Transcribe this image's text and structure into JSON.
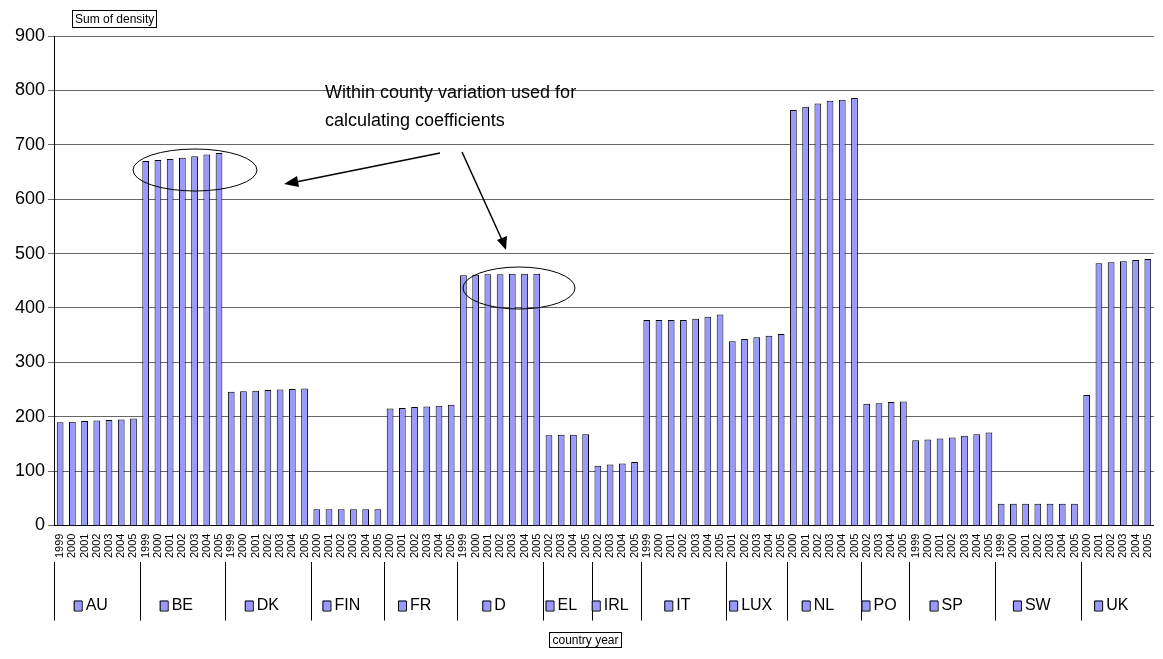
{
  "chart_data": {
    "type": "bar",
    "ylabel": "Sum of density",
    "annotations": [
      "Within county variation used for calculating coefficients",
      "country year"
    ],
    "categories": [
      "1999",
      "2000",
      "2001",
      "2002",
      "2003",
      "2004",
      "2005",
      "1999",
      "2000",
      "2001",
      "2002",
      "2003",
      "2004",
      "2005",
      "1999",
      "2000",
      "2001",
      "2002",
      "2003",
      "2004",
      "2005",
      "2000",
      "2001",
      "2002",
      "2003",
      "2004",
      "2005",
      "2000",
      "2001",
      "2002",
      "2003",
      "2004",
      "2005",
      "1999",
      "2000",
      "2001",
      "2002",
      "2003",
      "2004",
      "2005",
      "2002",
      "2003",
      "2004",
      "2005",
      "2002",
      "2003",
      "2004",
      "2005",
      "1999",
      "2000",
      "2001",
      "2002",
      "2003",
      "2004",
      "2005",
      "2001",
      "2002",
      "2003",
      "2004",
      "2005",
      "2000",
      "2001",
      "2002",
      "2003",
      "2004",
      "2005",
      "2002",
      "2003",
      "2004",
      "2005",
      "1999",
      "2000",
      "2001",
      "2002",
      "2003",
      "2004",
      "2005",
      "1999",
      "2000",
      "2001",
      "2002",
      "2003",
      "2004",
      "2005",
      "2000",
      "2001",
      "2002",
      "2003",
      "2004",
      "2005"
    ],
    "ylim": [
      0,
      900
    ],
    "yticks": [
      0,
      100,
      200,
      300,
      400,
      500,
      600,
      700,
      800,
      900
    ],
    "grid": "y",
    "legend": "bottom",
    "series": [
      {
        "name": "AU",
        "color": "#9999ff",
        "values": [
          190,
          191,
          192,
          193,
          194,
          195,
          197,
          null,
          null,
          null,
          null,
          null,
          null,
          null,
          null,
          null,
          null,
          null,
          null,
          null,
          null,
          null,
          null,
          null,
          null,
          null,
          null,
          null,
          null,
          null,
          null,
          null,
          null,
          null,
          null,
          null,
          null,
          null,
          null,
          null,
          null,
          null,
          null,
          null,
          null,
          null,
          null,
          null,
          null,
          null,
          null,
          null,
          null,
          null,
          null,
          null,
          null,
          null,
          null,
          null,
          null,
          null,
          null,
          null,
          null,
          null,
          null,
          null,
          null,
          null,
          null,
          null,
          null,
          null,
          null,
          null,
          null,
          null,
          null,
          null,
          null,
          null,
          null,
          null,
          null,
          null,
          null,
          null,
          null,
          null
        ]
      },
      {
        "name": "BE",
        "color": "#9999ff",
        "values": [
          null,
          null,
          null,
          null,
          null,
          null,
          null,
          670,
          672,
          674,
          676,
          679,
          682,
          685,
          null,
          null,
          null,
          null,
          null,
          null,
          null,
          null,
          null,
          null,
          null,
          null,
          null,
          null,
          null,
          null,
          null,
          null,
          null,
          null,
          null,
          null,
          null,
          null,
          null,
          null,
          null,
          null,
          null,
          null,
          null,
          null,
          null,
          null,
          null,
          null,
          null,
          null,
          null,
          null,
          null,
          null,
          null,
          null,
          null,
          null,
          null,
          null,
          null,
          null,
          null,
          null,
          null,
          null,
          null,
          null,
          null,
          null,
          null,
          null,
          null,
          null,
          null,
          null,
          null,
          null,
          null,
          null,
          null,
          null,
          null,
          null,
          null,
          null,
          null,
          null
        ]
      },
      {
        "name": "DK",
        "color": "#9999ff",
        "values": [
          null,
          null,
          null,
          null,
          null,
          null,
          null,
          null,
          null,
          null,
          null,
          null,
          null,
          null,
          246,
          247,
          248,
          249,
          250,
          251,
          252,
          null,
          null,
          null,
          null,
          null,
          null,
          null,
          null,
          null,
          null,
          null,
          null,
          null,
          null,
          null,
          null,
          null,
          null,
          null,
          null,
          null,
          null,
          null,
          null,
          null,
          null,
          null,
          null,
          null,
          null,
          null,
          null,
          null,
          null,
          null,
          null,
          null,
          null,
          null,
          null,
          null,
          null,
          null,
          null,
          null,
          null,
          null,
          null,
          null,
          null,
          null,
          null,
          null,
          null,
          null,
          null,
          null,
          null,
          null,
          null,
          null,
          null,
          null,
          null,
          null,
          null,
          null,
          null,
          null
        ]
      },
      {
        "name": "FIN",
        "color": "#9999ff",
        "values": [
          null,
          null,
          null,
          null,
          null,
          null,
          null,
          null,
          null,
          null,
          null,
          null,
          null,
          null,
          null,
          null,
          null,
          null,
          null,
          null,
          null,
          30,
          30,
          30,
          30,
          30,
          30,
          null,
          null,
          null,
          null,
          null,
          null,
          null,
          null,
          null,
          null,
          null,
          null,
          null,
          null,
          null,
          null,
          null,
          null,
          null,
          null,
          null,
          null,
          null,
          null,
          null,
          null,
          null,
          null,
          null,
          null,
          null,
          null,
          null,
          null,
          null,
          null,
          null,
          null,
          null,
          null,
          null,
          null,
          null,
          null,
          null,
          null,
          null,
          null,
          null,
          null,
          null,
          null,
          null,
          null,
          null,
          null,
          null,
          null,
          null,
          null,
          null,
          null,
          null
        ]
      },
      {
        "name": "FR",
        "color": "#9999ff",
        "values": [
          null,
          null,
          null,
          null,
          null,
          null,
          null,
          null,
          null,
          null,
          null,
          null,
          null,
          null,
          null,
          null,
          null,
          null,
          null,
          null,
          null,
          null,
          null,
          null,
          null,
          null,
          null,
          215,
          216,
          218,
          219,
          220,
          222,
          null,
          null,
          null,
          null,
          null,
          null,
          null,
          null,
          null,
          null,
          null,
          null,
          null,
          null,
          null,
          null,
          null,
          null,
          null,
          null,
          null,
          null,
          null,
          null,
          null,
          null,
          null,
          null,
          null,
          null,
          null,
          null,
          null,
          null,
          null,
          null,
          null,
          null,
          null,
          null,
          null,
          null,
          null,
          null,
          null,
          null,
          null,
          null,
          null,
          null,
          null,
          null,
          null,
          null,
          null,
          null,
          null
        ]
      },
      {
        "name": "D",
        "color": "#9999ff",
        "values": [
          null,
          null,
          null,
          null,
          null,
          null,
          null,
          null,
          null,
          null,
          null,
          null,
          null,
          null,
          null,
          null,
          null,
          null,
          null,
          null,
          null,
          null,
          null,
          null,
          null,
          null,
          null,
          null,
          null,
          null,
          null,
          null,
          null,
          460,
          461,
          462,
          462,
          463,
          463,
          463,
          null,
          null,
          null,
          null,
          null,
          null,
          null,
          null,
          null,
          null,
          null,
          null,
          null,
          null,
          null,
          null,
          null,
          null,
          null,
          null,
          null,
          null,
          null,
          null,
          null,
          null,
          null,
          null,
          null,
          null,
          null,
          null,
          null,
          null,
          null,
          null,
          null,
          null,
          null,
          null,
          null,
          null,
          null,
          null,
          null,
          null,
          null,
          null,
          null,
          null
        ]
      },
      {
        "name": "EL",
        "color": "#9999ff",
        "values": [
          null,
          null,
          null,
          null,
          null,
          null,
          null,
          null,
          null,
          null,
          null,
          null,
          null,
          null,
          null,
          null,
          null,
          null,
          null,
          null,
          null,
          null,
          null,
          null,
          null,
          null,
          null,
          null,
          null,
          null,
          null,
          null,
          null,
          null,
          null,
          null,
          null,
          null,
          null,
          null,
          166,
          167,
          167,
          168,
          null,
          null,
          null,
          null,
          null,
          null,
          null,
          null,
          null,
          null,
          null,
          null,
          null,
          null,
          null,
          null,
          null,
          null,
          null,
          null,
          null,
          null,
          null,
          null,
          null,
          null,
          null,
          null,
          null,
          null,
          null,
          null,
          null,
          null,
          null,
          null,
          null,
          null,
          null,
          null,
          null,
          null,
          null,
          null,
          null,
          null
        ]
      },
      {
        "name": "IRL",
        "color": "#9999ff",
        "values": [
          null,
          null,
          null,
          null,
          null,
          null,
          null,
          null,
          null,
          null,
          null,
          null,
          null,
          null,
          null,
          null,
          null,
          null,
          null,
          null,
          null,
          null,
          null,
          null,
          null,
          null,
          null,
          null,
          null,
          null,
          null,
          null,
          null,
          null,
          null,
          null,
          null,
          null,
          null,
          null,
          null,
          null,
          null,
          null,
          110,
          112,
          114,
          117,
          null,
          null,
          null,
          null,
          null,
          null,
          null,
          null,
          null,
          null,
          null,
          null,
          null,
          null,
          null,
          null,
          null,
          null,
          null,
          null,
          null,
          null,
          null,
          null,
          null,
          null,
          null,
          null,
          null,
          null,
          null,
          null,
          null,
          null,
          null,
          null,
          null,
          null,
          null,
          null,
          null,
          null
        ]
      },
      {
        "name": "IT",
        "color": "#9999ff",
        "values": [
          null,
          null,
          null,
          null,
          null,
          null,
          null,
          null,
          null,
          null,
          null,
          null,
          null,
          null,
          null,
          null,
          null,
          null,
          null,
          null,
          null,
          null,
          null,
          null,
          null,
          null,
          null,
          null,
          null,
          null,
          null,
          null,
          null,
          null,
          null,
          null,
          null,
          null,
          null,
          null,
          null,
          null,
          null,
          null,
          null,
          null,
          null,
          null,
          378,
          378,
          378,
          378,
          380,
          384,
          388,
          null,
          null,
          null,
          null,
          null,
          null,
          null,
          null,
          null,
          null,
          null,
          null,
          null,
          null,
          null,
          null,
          null,
          null,
          null,
          null,
          null,
          null,
          null,
          null,
          null,
          null,
          null,
          null,
          null,
          null,
          null,
          null,
          null,
          null,
          null
        ]
      },
      {
        "name": "LUX",
        "color": "#9999ff",
        "values": [
          null,
          null,
          null,
          null,
          null,
          null,
          null,
          null,
          null,
          null,
          null,
          null,
          null,
          null,
          null,
          null,
          null,
          null,
          null,
          null,
          null,
          null,
          null,
          null,
          null,
          null,
          null,
          null,
          null,
          null,
          null,
          null,
          null,
          null,
          null,
          null,
          null,
          null,
          null,
          null,
          null,
          null,
          null,
          null,
          null,
          null,
          null,
          null,
          null,
          null,
          null,
          null,
          null,
          null,
          null,
          339,
          343,
          346,
          349,
          352,
          null,
          null,
          null,
          null,
          null,
          null,
          null,
          null,
          null,
          null,
          null,
          null,
          null,
          null,
          null,
          null,
          null,
          null,
          null,
          null,
          null,
          null,
          null,
          null,
          null,
          null,
          null,
          null,
          null,
          null
        ]
      },
      {
        "name": "NL",
        "color": "#9999ff",
        "values": [
          null,
          null,
          null,
          null,
          null,
          null,
          null,
          null,
          null,
          null,
          null,
          null,
          null,
          null,
          null,
          null,
          null,
          null,
          null,
          null,
          null,
          null,
          null,
          null,
          null,
          null,
          null,
          null,
          null,
          null,
          null,
          null,
          null,
          null,
          null,
          null,
          null,
          null,
          null,
          null,
          null,
          null,
          null,
          null,
          null,
          null,
          null,
          null,
          null,
          null,
          null,
          null,
          null,
          null,
          null,
          null,
          null,
          null,
          null,
          null,
          764,
          770,
          776,
          781,
          783,
          786,
          null,
          null,
          null,
          null,
          null,
          null,
          null,
          null,
          null,
          null,
          null,
          null,
          null,
          null,
          null,
          null,
          null,
          null,
          null,
          null,
          null,
          null,
          null,
          null
        ]
      },
      {
        "name": "PO",
        "color": "#9999ff",
        "values": [
          null,
          null,
          null,
          null,
          null,
          null,
          null,
          null,
          null,
          null,
          null,
          null,
          null,
          null,
          null,
          null,
          null,
          null,
          null,
          null,
          null,
          null,
          null,
          null,
          null,
          null,
          null,
          null,
          null,
          null,
          null,
          null,
          null,
          null,
          null,
          null,
          null,
          null,
          null,
          null,
          null,
          null,
          null,
          null,
          null,
          null,
          null,
          null,
          null,
          null,
          null,
          null,
          null,
          null,
          null,
          null,
          null,
          null,
          null,
          null,
          null,
          null,
          null,
          null,
          null,
          null,
          224,
          225,
          227,
          228,
          null,
          null,
          null,
          null,
          null,
          null,
          null,
          null,
          null,
          null,
          null,
          null,
          null,
          null,
          null,
          null,
          null,
          null,
          null,
          null
        ]
      },
      {
        "name": "SP",
        "color": "#9999ff",
        "values": [
          null,
          null,
          null,
          null,
          null,
          null,
          null,
          null,
          null,
          null,
          null,
          null,
          null,
          null,
          null,
          null,
          null,
          null,
          null,
          null,
          null,
          null,
          null,
          null,
          null,
          null,
          null,
          null,
          null,
          null,
          null,
          null,
          null,
          null,
          null,
          null,
          null,
          null,
          null,
          null,
          null,
          null,
          null,
          null,
          null,
          null,
          null,
          null,
          null,
          null,
          null,
          null,
          null,
          null,
          null,
          null,
          null,
          null,
          null,
          null,
          null,
          null,
          null,
          null,
          null,
          null,
          null,
          null,
          null,
          null,
          157,
          158,
          160,
          162,
          165,
          168,
          171,
          null,
          null,
          null,
          null,
          null,
          null,
          null,
          null,
          null,
          null,
          null,
          null,
          null
        ]
      },
      {
        "name": "SW",
        "color": "#9999ff",
        "values": [
          null,
          null,
          null,
          null,
          null,
          null,
          null,
          null,
          null,
          null,
          null,
          null,
          null,
          null,
          null,
          null,
          null,
          null,
          null,
          null,
          null,
          null,
          null,
          null,
          null,
          null,
          null,
          null,
          null,
          null,
          null,
          null,
          null,
          null,
          null,
          null,
          null,
          null,
          null,
          null,
          null,
          null,
          null,
          null,
          null,
          null,
          null,
          null,
          null,
          null,
          null,
          null,
          null,
          null,
          null,
          null,
          null,
          null,
          null,
          null,
          null,
          null,
          null,
          null,
          null,
          null,
          null,
          null,
          null,
          null,
          null,
          null,
          null,
          null,
          null,
          null,
          null,
          40,
          40,
          40,
          40,
          40,
          40,
          40,
          null,
          null,
          null,
          null,
          null,
          null
        ]
      },
      {
        "name": "UK",
        "color": "#9999ff",
        "values": [
          null,
          null,
          null,
          null,
          null,
          null,
          null,
          null,
          null,
          null,
          null,
          null,
          null,
          null,
          null,
          null,
          null,
          null,
          null,
          null,
          null,
          null,
          null,
          null,
          null,
          null,
          null,
          null,
          null,
          null,
          null,
          null,
          null,
          null,
          null,
          null,
          null,
          null,
          null,
          null,
          null,
          null,
          null,
          null,
          null,
          null,
          null,
          null,
          null,
          null,
          null,
          null,
          null,
          null,
          null,
          null,
          null,
          null,
          null,
          null,
          null,
          null,
          null,
          null,
          null,
          null,
          null,
          null,
          null,
          null,
          null,
          null,
          null,
          null,
          null,
          null,
          null,
          null,
          null,
          null,
          null,
          null,
          null,
          null,
          240,
          482,
          484,
          486,
          488,
          490
        ]
      }
    ]
  }
}
